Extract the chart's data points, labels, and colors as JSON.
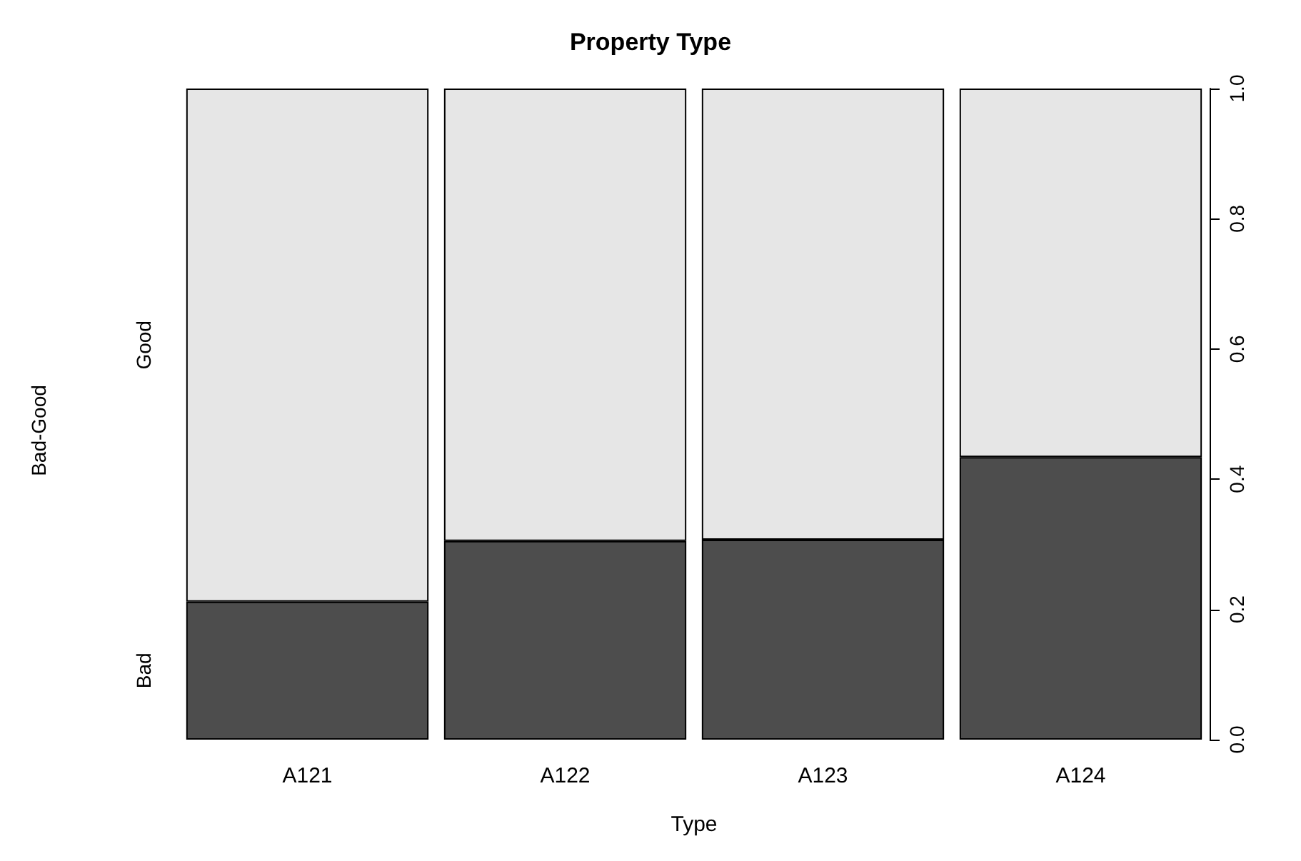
{
  "chart_data": {
    "type": "bar",
    "title": "Property Type",
    "xlabel": "Type",
    "annotations": [
      "Bad-Good"
    ],
    "categories": [
      "A121",
      "A122",
      "A123",
      "A124"
    ],
    "stacked": true,
    "series": [
      {
        "name": "Bad",
        "color": "#4d4d4d",
        "values": [
          0.212,
          0.305,
          0.307,
          0.434
        ]
      },
      {
        "name": "Good",
        "color": "#e6e6e6",
        "values": [
          0.788,
          0.695,
          0.693,
          0.566
        ]
      }
    ],
    "ylim": [
      0,
      1
    ],
    "yticks": [
      {
        "value": 0,
        "label": "0.0"
      },
      {
        "value": 0.2,
        "label": "0.2"
      },
      {
        "value": 0.4,
        "label": "0.4"
      },
      {
        "value": 0.6,
        "label": "0.6"
      },
      {
        "value": 0.8,
        "label": "0.8"
      },
      {
        "value": 1,
        "label": "1.0"
      }
    ],
    "grid": false
  }
}
